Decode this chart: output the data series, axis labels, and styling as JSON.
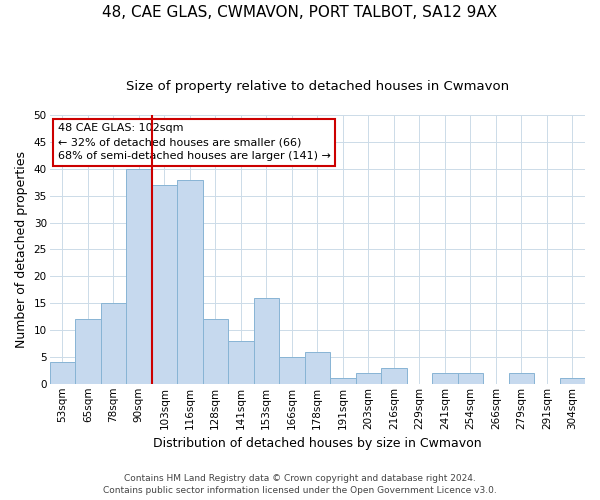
{
  "title": "48, CAE GLAS, CWMAVON, PORT TALBOT, SA12 9AX",
  "subtitle": "Size of property relative to detached houses in Cwmavon",
  "xlabel": "Distribution of detached houses by size in Cwmavon",
  "ylabel": "Number of detached properties",
  "bar_labels": [
    "53sqm",
    "65sqm",
    "78sqm",
    "90sqm",
    "103sqm",
    "116sqm",
    "128sqm",
    "141sqm",
    "153sqm",
    "166sqm",
    "178sqm",
    "191sqm",
    "203sqm",
    "216sqm",
    "229sqm",
    "241sqm",
    "254sqm",
    "266sqm",
    "279sqm",
    "291sqm",
    "304sqm"
  ],
  "bar_values": [
    4,
    12,
    15,
    40,
    37,
    38,
    12,
    8,
    16,
    5,
    6,
    1,
    2,
    3,
    0,
    2,
    2,
    0,
    2,
    0,
    1
  ],
  "bar_color": "#c6d9ee",
  "bar_edgecolor": "#88b4d4",
  "reference_line_color": "#cc0000",
  "ylim": [
    0,
    50
  ],
  "yticks": [
    0,
    5,
    10,
    15,
    20,
    25,
    30,
    35,
    40,
    45,
    50
  ],
  "annotation_text": "48 CAE GLAS: 102sqm\n← 32% of detached houses are smaller (66)\n68% of semi-detached houses are larger (141) →",
  "annotation_box_facecolor": "#ffffff",
  "annotation_box_edgecolor": "#cc0000",
  "footer_line1": "Contains HM Land Registry data © Crown copyright and database right 2024.",
  "footer_line2": "Contains public sector information licensed under the Open Government Licence v3.0.",
  "background_color": "#ffffff",
  "grid_color": "#ccdbe8",
  "title_fontsize": 11,
  "subtitle_fontsize": 9.5,
  "axis_label_fontsize": 9,
  "tick_fontsize": 7.5,
  "annotation_fontsize": 8,
  "footer_fontsize": 6.5
}
